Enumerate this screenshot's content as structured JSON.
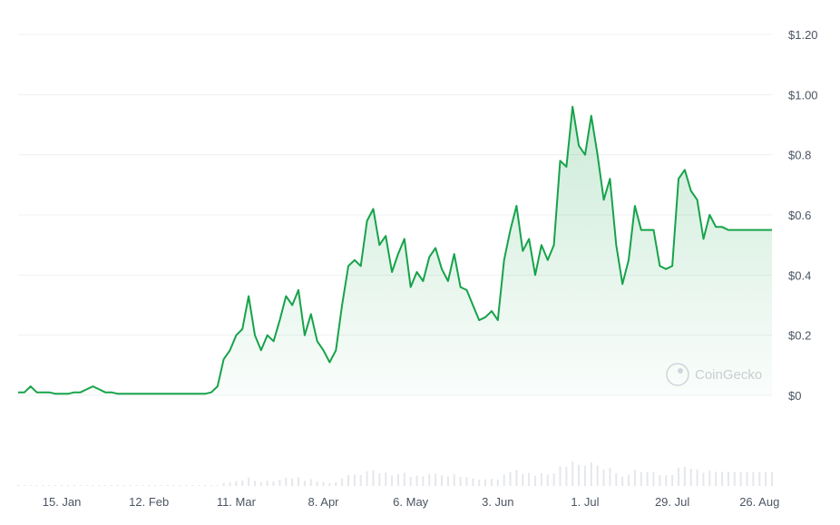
{
  "chart_data": {
    "type": "area",
    "title": "",
    "xlabel": "",
    "ylabel": "",
    "ylim": [
      0,
      1.2
    ],
    "y_ticks": [
      0,
      0.2,
      0.4,
      0.6,
      0.8,
      1.0,
      1.2
    ],
    "y_tick_labels": [
      "$0",
      "$0.2",
      "$0.4",
      "$0.6",
      "$0.8",
      "$1.00",
      "$1.20"
    ],
    "x_tick_labels": [
      "15. Jan",
      "12. Feb",
      "11. Mar",
      "8. Apr",
      "6. May",
      "3. Jun",
      "1. Jul",
      "29. Jul",
      "26. Aug"
    ],
    "x_ticks_days": [
      14,
      42,
      70,
      98,
      126,
      154,
      182,
      210,
      238
    ],
    "grid": true,
    "legend": "none",
    "line_color": "#16a34a",
    "fill_color": "#16a34a",
    "volume_color": "#e5e7eb",
    "watermark": "CoinGecko",
    "series": [
      {
        "x_days": [
          0,
          2,
          4,
          6,
          8,
          10,
          12,
          14,
          16,
          18,
          20,
          22,
          24,
          26,
          28,
          30,
          32,
          34,
          36,
          38,
          40,
          42,
          44,
          46,
          48,
          50,
          52,
          54,
          56,
          58,
          60,
          62,
          64,
          66,
          68,
          70,
          72,
          74,
          76,
          78,
          80,
          82,
          84,
          86,
          88,
          90,
          92,
          94,
          96,
          98,
          100,
          102,
          104,
          106,
          108,
          110,
          112,
          114,
          116,
          118,
          120,
          122,
          124,
          126,
          128,
          130,
          132,
          134,
          136,
          138,
          140,
          142,
          144,
          146,
          148,
          150,
          152,
          154,
          156,
          158,
          160,
          162,
          164,
          166,
          168,
          170,
          172,
          174,
          176,
          178,
          180,
          182,
          184,
          186,
          188,
          190,
          192,
          194,
          196,
          198,
          200,
          202,
          204,
          206,
          208,
          210,
          212,
          214,
          216,
          218,
          220,
          222,
          224,
          226,
          228,
          230,
          232,
          234,
          236,
          238,
          240,
          242
        ],
        "values": [
          0.01,
          0.01,
          0.03,
          0.01,
          0.01,
          0.01,
          0.005,
          0.005,
          0.005,
          0.01,
          0.01,
          0.02,
          0.03,
          0.02,
          0.01,
          0.01,
          0.005,
          0.005,
          0.005,
          0.005,
          0.005,
          0.005,
          0.005,
          0.005,
          0.005,
          0.005,
          0.005,
          0.005,
          0.005,
          0.005,
          0.005,
          0.01,
          0.03,
          0.12,
          0.15,
          0.2,
          0.22,
          0.33,
          0.2,
          0.15,
          0.2,
          0.18,
          0.25,
          0.33,
          0.3,
          0.35,
          0.2,
          0.27,
          0.18,
          0.15,
          0.11,
          0.15,
          0.3,
          0.43,
          0.45,
          0.43,
          0.58,
          0.62,
          0.5,
          0.53,
          0.41,
          0.47,
          0.52,
          0.36,
          0.41,
          0.38,
          0.46,
          0.49,
          0.42,
          0.38,
          0.47,
          0.36,
          0.35,
          0.3,
          0.25,
          0.26,
          0.28,
          0.25,
          0.45,
          0.55,
          0.63,
          0.48,
          0.52,
          0.4,
          0.5,
          0.45,
          0.5,
          0.78,
          0.76,
          0.96,
          0.83,
          0.8,
          0.93,
          0.8,
          0.65,
          0.72,
          0.5,
          0.37,
          0.45,
          0.63,
          0.55,
          0.55,
          0.55,
          0.43,
          0.42,
          0.43,
          0.72,
          0.75,
          0.68,
          0.65,
          0.52,
          0.6,
          0.56,
          0.56,
          0.55,
          0.55,
          0.55,
          0.55,
          0.55,
          0.55,
          0.55,
          0.55
        ]
      }
    ]
  }
}
